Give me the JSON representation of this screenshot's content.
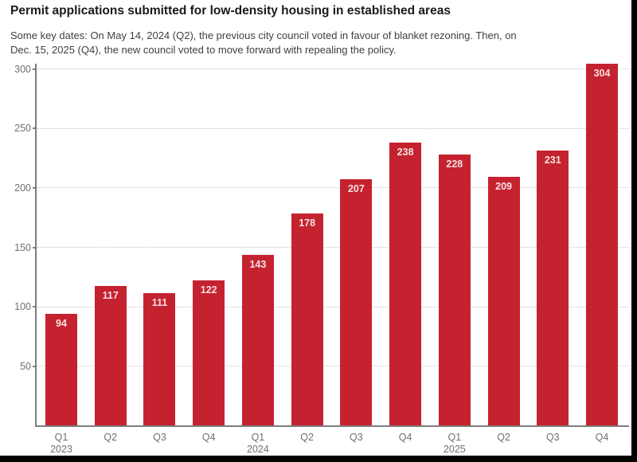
{
  "header": {
    "title": "Permit applications submitted for low-density housing in established areas",
    "subtitle_line1": "Some key dates: On May 14, 2024 (Q2), the previous city council voted in favour of blanket rezoning. Then, on",
    "subtitle_line2": "Dec. 15, 2025 (Q4), the new council voted to move forward with repealing the policy."
  },
  "chart_data": {
    "type": "bar",
    "title": "Permit applications submitted for low-density housing in established areas",
    "categories": [
      "Q1",
      "Q2",
      "Q3",
      "Q4",
      "Q1",
      "Q2",
      "Q3",
      "Q4",
      "Q1",
      "Q2",
      "Q3",
      "Q4"
    ],
    "year_labels": [
      {
        "index": 0,
        "label": "2023"
      },
      {
        "index": 4,
        "label": "2024"
      },
      {
        "index": 8,
        "label": "2025"
      }
    ],
    "values": [
      94,
      117,
      111,
      122,
      143,
      178,
      207,
      238,
      228,
      209,
      231,
      304
    ],
    "value_labels_shown": true,
    "xlabel": "",
    "ylabel": "",
    "ylim": [
      0,
      300
    ],
    "yticks": [
      50,
      100,
      150,
      200,
      250,
      300
    ],
    "grid": "horizontal-dotted",
    "legend": "none",
    "colors": {
      "bar": "#c52230",
      "value_label": "#f6e2e2",
      "axis": "#7d7d7d",
      "gridline": "#c9c9c9",
      "tick_label": "#6f6f6f",
      "title_text": "#1a1a1a",
      "subtitle_text": "#3f3f3f",
      "background": "#ffffff",
      "frame": "#000000"
    }
  }
}
